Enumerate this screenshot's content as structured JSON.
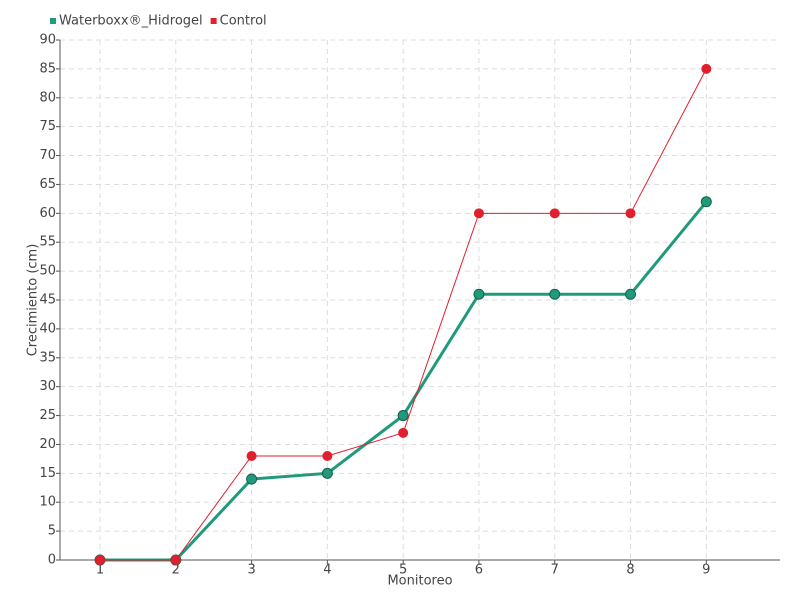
{
  "chart_data": {
    "type": "line",
    "x_label": "Monitoreo",
    "y_label": "Crecimiento (cm)",
    "categories": [
      "1",
      "2",
      "3",
      "4",
      "5",
      "6",
      "7",
      "8",
      "9"
    ],
    "series": [
      {
        "name": "Waterboxx®_Hidrogel",
        "color": "#1f9a7b",
        "values": [
          0,
          0,
          14,
          15,
          25,
          46,
          46,
          46,
          62
        ]
      },
      {
        "name": "Control",
        "color": "#e0202d",
        "values": [
          0,
          0,
          18,
          18,
          22,
          60,
          60,
          60,
          85
        ]
      }
    ],
    "ylim": [
      0,
      90
    ],
    "yticks": [
      0,
      5,
      10,
      15,
      20,
      25,
      30,
      35,
      40,
      45,
      50,
      55,
      60,
      65,
      70,
      75,
      80,
      85,
      90
    ],
    "grid": true,
    "legend": "top-left"
  }
}
